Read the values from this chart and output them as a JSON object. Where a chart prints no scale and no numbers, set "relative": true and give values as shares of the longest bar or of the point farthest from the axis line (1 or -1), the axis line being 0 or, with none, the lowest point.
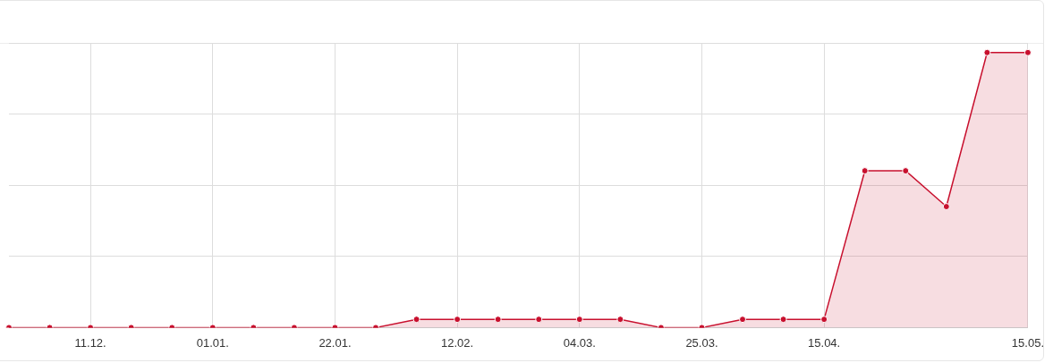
{
  "chart_data": {
    "type": "area",
    "relative": true,
    "grid": true,
    "marker": "circle",
    "line_style": "solid",
    "categories": [
      null,
      null,
      "11.12.",
      null,
      null,
      "01.01.",
      null,
      null,
      "22.01.",
      null,
      null,
      "12.02.",
      null,
      null,
      "04.03.",
      null,
      null,
      "25.03.",
      null,
      null,
      "15.04.",
      null,
      null,
      null,
      null,
      "15.05."
    ],
    "series": [
      {
        "color": "#c8102e",
        "values": [
          0,
          0,
          0,
          0,
          0,
          0,
          0,
          0,
          0,
          0,
          0.03,
          0.03,
          0.03,
          0.03,
          0.03,
          0.03,
          0,
          0,
          0.03,
          0.03,
          0.03,
          0.57,
          0.57,
          0.44,
          1,
          1
        ]
      }
    ]
  }
}
